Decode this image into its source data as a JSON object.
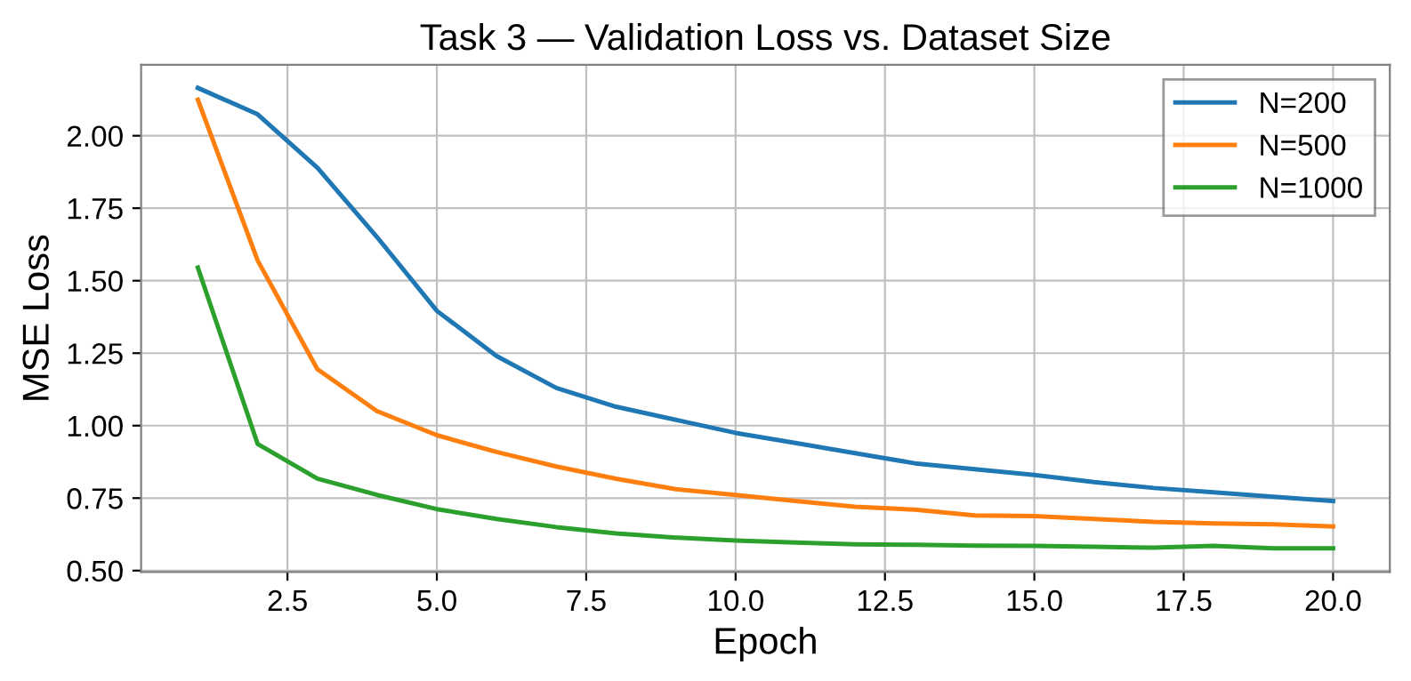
{
  "chart_data": {
    "type": "line",
    "title": "Task 3 — Validation Loss vs. Dataset Size",
    "xlabel": "Epoch",
    "ylabel": "MSE Loss",
    "x": [
      1,
      2,
      3,
      4,
      5,
      6,
      7,
      8,
      9,
      10,
      11,
      12,
      13,
      14,
      15,
      16,
      17,
      18,
      19,
      20
    ],
    "series": [
      {
        "name": "N=200",
        "color": "#1f77b4",
        "values": [
          2.165,
          2.074,
          1.89,
          1.65,
          1.396,
          1.24,
          1.13,
          1.065,
          1.02,
          0.975,
          0.94,
          0.905,
          0.87,
          0.85,
          0.83,
          0.805,
          0.785,
          0.77,
          0.755,
          0.74
        ]
      },
      {
        "name": "N=500",
        "color": "#ff7f0e",
        "values": [
          2.124,
          1.57,
          1.195,
          1.05,
          0.967,
          0.909,
          0.859,
          0.817,
          0.781,
          0.761,
          0.74,
          0.72,
          0.71,
          0.69,
          0.688,
          0.678,
          0.668,
          0.663,
          0.66,
          0.652
        ]
      },
      {
        "name": "N=1000",
        "color": "#2ca02c",
        "values": [
          1.545,
          0.937,
          0.817,
          0.761,
          0.712,
          0.678,
          0.65,
          0.628,
          0.614,
          0.604,
          0.597,
          0.591,
          0.589,
          0.586,
          0.585,
          0.582,
          0.579,
          0.585,
          0.577,
          0.577
        ]
      }
    ],
    "xlim": [
      0.05,
      20.95
    ],
    "ylim": [
      0.495,
      2.245
    ],
    "xticks": [
      {
        "value": 2.5,
        "label": "2.5"
      },
      {
        "value": 5,
        "label": "5.0"
      },
      {
        "value": 7.5,
        "label": "7.5"
      },
      {
        "value": 10,
        "label": "10.0"
      },
      {
        "value": 12.5,
        "label": "12.5"
      },
      {
        "value": 15,
        "label": "15.0"
      },
      {
        "value": 17.5,
        "label": "17.5"
      },
      {
        "value": 20,
        "label": "20.0"
      }
    ],
    "yticks": [
      {
        "value": 0.5,
        "label": "0.50"
      },
      {
        "value": 0.75,
        "label": "0.75"
      },
      {
        "value": 1,
        "label": "1.00"
      },
      {
        "value": 1.25,
        "label": "1.25"
      },
      {
        "value": 1.5,
        "label": "1.50"
      },
      {
        "value": 1.75,
        "label": "1.75"
      },
      {
        "value": 2,
        "label": "2.00"
      }
    ],
    "grid": true,
    "legend": "top right",
    "marker": "none",
    "line_style": "solid"
  }
}
